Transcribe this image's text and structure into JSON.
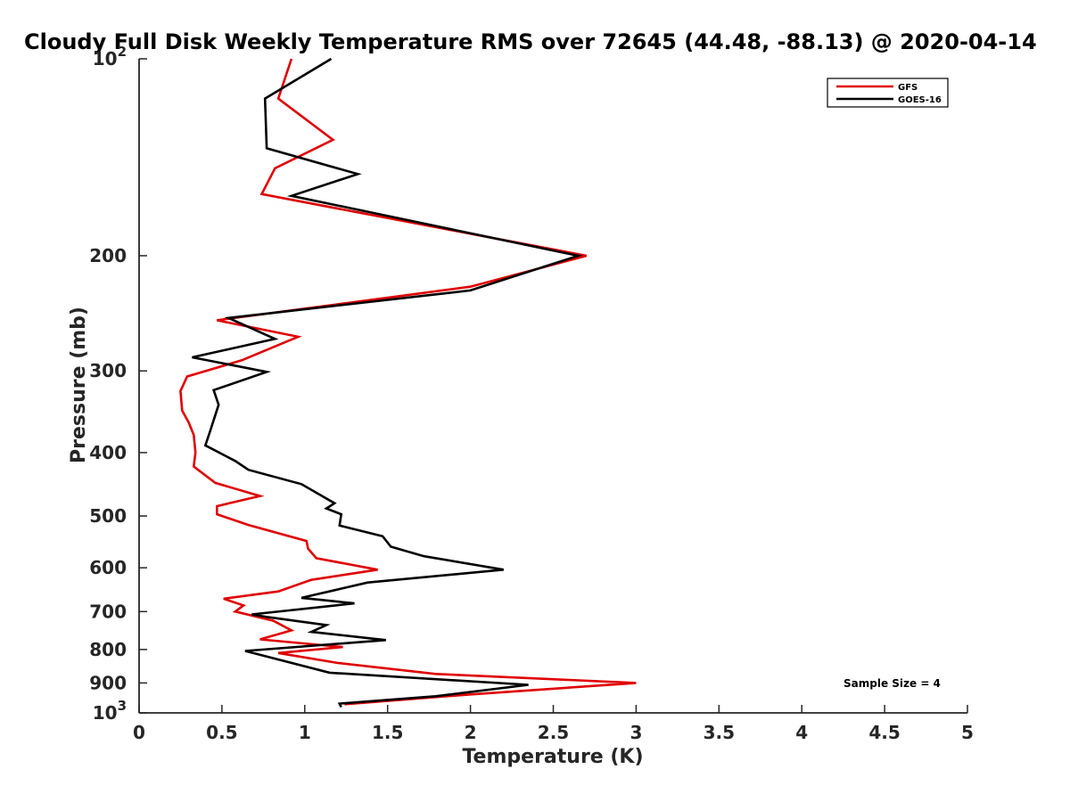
{
  "chart_data": {
    "type": "line",
    "title": "Cloudy Full Disk Weekly Temperature RMS over 72645 (44.48, -88.13) @ 2020-04-14",
    "xlabel": "Temperature (K)",
    "ylabel": "Pressure (mb)",
    "xlim": [
      0,
      5
    ],
    "ylim": [
      100,
      1000
    ],
    "y_scale": "log",
    "y_reversed": true,
    "x_ticks": [
      "0",
      "0.5",
      "1",
      "1.5",
      "2",
      "2.5",
      "3",
      "3.5",
      "4",
      "4.5",
      "5"
    ],
    "y_ticks": [
      {
        "value": 100,
        "base": "10",
        "exp": "2"
      },
      {
        "value": 200,
        "label": "200"
      },
      {
        "value": 300,
        "label": "300"
      },
      {
        "value": 400,
        "label": "400"
      },
      {
        "value": 500,
        "label": "500"
      },
      {
        "value": 600,
        "label": "600"
      },
      {
        "value": 700,
        "label": "700"
      },
      {
        "value": 800,
        "label": "800"
      },
      {
        "value": 900,
        "label": "900"
      },
      {
        "value": 1000,
        "base": "10",
        "exp": "3"
      }
    ],
    "legend_position": "top-right",
    "annotation": "Sample Size = 4",
    "series": [
      {
        "name": "GFS",
        "color": "#e00000",
        "points": [
          [
            0.92,
            100
          ],
          [
            0.84,
            115
          ],
          [
            1.17,
            133
          ],
          [
            0.82,
            147
          ],
          [
            0.74,
            161
          ],
          [
            2.7,
            200
          ],
          [
            2.0,
            223
          ],
          [
            0.47,
            251
          ],
          [
            0.96,
            266
          ],
          [
            0.62,
            289
          ],
          [
            0.29,
            306
          ],
          [
            0.25,
            322
          ],
          [
            0.26,
            345
          ],
          [
            0.3,
            360
          ],
          [
            0.33,
            376
          ],
          [
            0.34,
            400
          ],
          [
            0.33,
            420
          ],
          [
            0.46,
            445
          ],
          [
            0.73,
            466
          ],
          [
            0.47,
            483
          ],
          [
            0.47,
            497
          ],
          [
            0.66,
            516
          ],
          [
            1.01,
            546
          ],
          [
            1.02,
            561
          ],
          [
            1.07,
            580
          ],
          [
            1.44,
            604
          ],
          [
            1.04,
            626
          ],
          [
            0.84,
            652
          ],
          [
            0.51,
            669
          ],
          [
            0.63,
            685
          ],
          [
            0.58,
            700
          ],
          [
            0.81,
            723
          ],
          [
            0.92,
            748
          ],
          [
            0.73,
            772
          ],
          [
            1.23,
            793
          ],
          [
            0.84,
            810
          ],
          [
            1.2,
            839
          ],
          [
            1.79,
            872
          ],
          [
            3.0,
            900
          ],
          [
            2.0,
            937
          ],
          [
            1.24,
            970
          ]
        ]
      },
      {
        "name": "GOES-16",
        "color": "#000000",
        "points": [
          [
            1.16,
            100
          ],
          [
            0.76,
            115
          ],
          [
            0.77,
            137
          ],
          [
            1.32,
            150
          ],
          [
            0.92,
            162
          ],
          [
            2.65,
            200
          ],
          [
            2.0,
            226
          ],
          [
            0.54,
            249
          ],
          [
            0.82,
            268
          ],
          [
            0.32,
            286
          ],
          [
            0.77,
            301
          ],
          [
            0.45,
            321
          ],
          [
            0.48,
            338
          ],
          [
            0.43,
            370
          ],
          [
            0.4,
            390
          ],
          [
            0.58,
            412
          ],
          [
            0.66,
            425
          ],
          [
            0.98,
            447
          ],
          [
            1.18,
            478
          ],
          [
            1.13,
            487
          ],
          [
            1.22,
            497
          ],
          [
            1.21,
            517
          ],
          [
            1.47,
            537
          ],
          [
            1.52,
            557
          ],
          [
            1.72,
            576
          ],
          [
            2.2,
            604
          ],
          [
            1.38,
            632
          ],
          [
            0.98,
            667
          ],
          [
            1.3,
            680
          ],
          [
            0.68,
            707
          ],
          [
            0.78,
            714
          ],
          [
            1.13,
            734
          ],
          [
            1.04,
            752
          ],
          [
            1.49,
            774
          ],
          [
            0.64,
            804
          ],
          [
            1.15,
            868
          ],
          [
            2.35,
            906
          ],
          [
            1.79,
            943
          ],
          [
            1.21,
            968
          ],
          [
            1.22,
            980
          ]
        ]
      }
    ]
  }
}
